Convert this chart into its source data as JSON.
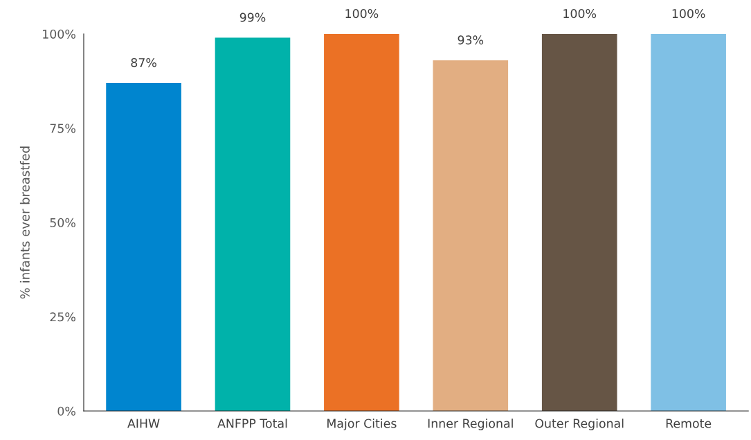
{
  "chart_data": {
    "type": "bar",
    "ylabel": "% infants ever breastfed",
    "categories": [
      "AIHW",
      "ANFPP Total",
      "Major Cities",
      "Inner Regional",
      "Outer Regional",
      "Remote"
    ],
    "values": [
      87,
      99,
      100,
      93,
      100,
      100
    ],
    "colors": [
      "#0085cf",
      "#00b2aa",
      "#eb7125",
      "#e2ae82",
      "#665545",
      "#7fc0e5"
    ],
    "value_labels": [
      "87%",
      "99%",
      "100%",
      "93%",
      "100%",
      "100%"
    ],
    "ylim": [
      0,
      100
    ],
    "yticks": [
      {
        "value": 0,
        "label": "0%"
      },
      {
        "value": 25,
        "label": "25%"
      },
      {
        "value": 50,
        "label": "50%"
      },
      {
        "value": 75,
        "label": "75%"
      },
      {
        "value": 100,
        "label": "100%"
      }
    ],
    "grid": false,
    "legend": false
  }
}
